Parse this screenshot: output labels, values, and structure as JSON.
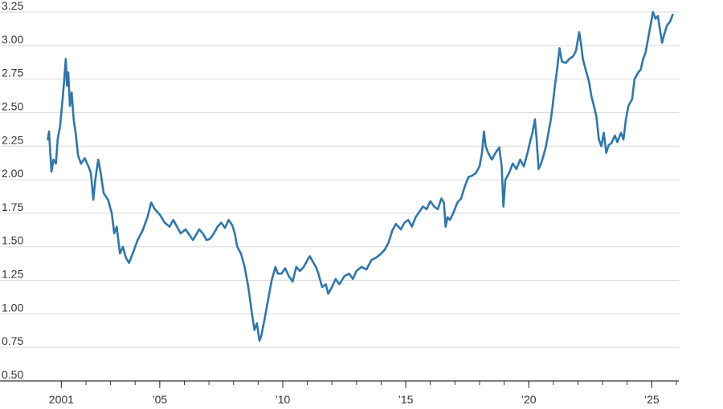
{
  "chart_data": {
    "type": "line",
    "title": "",
    "xlabel": "",
    "ylabel": "",
    "colors": {
      "line": "#2f76ad",
      "grid": "#d9d9d9",
      "axis": "#333333",
      "text": "#333333"
    },
    "grid": true,
    "legend": "none",
    "xlim": [
      2000.4,
      2026.1
    ],
    "ylim": [
      0.5,
      3.25
    ],
    "y_ticks": [
      3.25,
      3.0,
      2.75,
      2.5,
      2.25,
      2.0,
      1.75,
      1.5,
      1.25,
      1.0,
      0.75,
      0.5
    ],
    "y_tick_labels": [
      "3.25",
      "3.00",
      "2.75",
      "2.50",
      "2.25",
      "2.00",
      "1.75",
      "1.50",
      "1.25",
      "1.00",
      "0.75",
      "0.50"
    ],
    "x_tick_labels": [
      {
        "x": 2001,
        "label": "2001"
      },
      {
        "x": 2005,
        "label": "’05"
      },
      {
        "x": 2010,
        "label": "’10"
      },
      {
        "x": 2015,
        "label": "’15"
      },
      {
        "x": 2020,
        "label": "’20"
      },
      {
        "x": 2025,
        "label": "’25"
      }
    ],
    "x_minor_ticks": [
      2000,
      2001,
      2002,
      2003,
      2004,
      2005,
      2006,
      2007,
      2008,
      2009,
      2010,
      2011,
      2012,
      2013,
      2014,
      2015,
      2016,
      2017,
      2018,
      2019,
      2020,
      2021,
      2022,
      2023,
      2024,
      2025,
      2026
    ],
    "series": [
      {
        "values": [
          [
            2000.45,
            2.3
          ],
          [
            2000.5,
            2.36
          ],
          [
            2000.55,
            2.2
          ],
          [
            2000.6,
            2.06
          ],
          [
            2000.68,
            2.15
          ],
          [
            2000.78,
            2.12
          ],
          [
            2000.85,
            2.3
          ],
          [
            2000.95,
            2.4
          ],
          [
            2001.05,
            2.6
          ],
          [
            2001.12,
            2.75
          ],
          [
            2001.18,
            2.9
          ],
          [
            2001.23,
            2.7
          ],
          [
            2001.28,
            2.8
          ],
          [
            2001.35,
            2.55
          ],
          [
            2001.42,
            2.65
          ],
          [
            2001.5,
            2.45
          ],
          [
            2001.58,
            2.35
          ],
          [
            2001.68,
            2.18
          ],
          [
            2001.8,
            2.12
          ],
          [
            2001.95,
            2.16
          ],
          [
            2002.1,
            2.1
          ],
          [
            2002.2,
            2.05
          ],
          [
            2002.3,
            1.85
          ],
          [
            2002.38,
            2.0
          ],
          [
            2002.5,
            2.15
          ],
          [
            2002.6,
            2.05
          ],
          [
            2002.72,
            1.9
          ],
          [
            2002.9,
            1.85
          ],
          [
            2003.05,
            1.75
          ],
          [
            2003.15,
            1.6
          ],
          [
            2003.25,
            1.65
          ],
          [
            2003.38,
            1.45
          ],
          [
            2003.5,
            1.5
          ],
          [
            2003.62,
            1.42
          ],
          [
            2003.75,
            1.38
          ],
          [
            2003.9,
            1.45
          ],
          [
            2004.1,
            1.55
          ],
          [
            2004.3,
            1.62
          ],
          [
            2004.5,
            1.72
          ],
          [
            2004.65,
            1.83
          ],
          [
            2004.8,
            1.78
          ],
          [
            2005.0,
            1.74
          ],
          [
            2005.2,
            1.68
          ],
          [
            2005.4,
            1.65
          ],
          [
            2005.55,
            1.7
          ],
          [
            2005.7,
            1.65
          ],
          [
            2005.85,
            1.6
          ],
          [
            2006.05,
            1.63
          ],
          [
            2006.2,
            1.59
          ],
          [
            2006.35,
            1.55
          ],
          [
            2006.45,
            1.58
          ],
          [
            2006.6,
            1.63
          ],
          [
            2006.75,
            1.6
          ],
          [
            2006.9,
            1.55
          ],
          [
            2007.05,
            1.56
          ],
          [
            2007.2,
            1.6
          ],
          [
            2007.35,
            1.65
          ],
          [
            2007.5,
            1.68
          ],
          [
            2007.65,
            1.64
          ],
          [
            2007.8,
            1.7
          ],
          [
            2007.95,
            1.66
          ],
          [
            2008.05,
            1.6
          ],
          [
            2008.15,
            1.5
          ],
          [
            2008.3,
            1.45
          ],
          [
            2008.45,
            1.35
          ],
          [
            2008.6,
            1.2
          ],
          [
            2008.75,
            1.0
          ],
          [
            2008.85,
            0.88
          ],
          [
            2008.95,
            0.93
          ],
          [
            2009.05,
            0.8
          ],
          [
            2009.12,
            0.83
          ],
          [
            2009.25,
            0.95
          ],
          [
            2009.4,
            1.1
          ],
          [
            2009.55,
            1.25
          ],
          [
            2009.7,
            1.35
          ],
          [
            2009.8,
            1.3
          ],
          [
            2009.95,
            1.3
          ],
          [
            2010.1,
            1.34
          ],
          [
            2010.25,
            1.28
          ],
          [
            2010.4,
            1.24
          ],
          [
            2010.55,
            1.35
          ],
          [
            2010.7,
            1.32
          ],
          [
            2010.85,
            1.35
          ],
          [
            2011.0,
            1.4
          ],
          [
            2011.1,
            1.43
          ],
          [
            2011.25,
            1.38
          ],
          [
            2011.35,
            1.35
          ],
          [
            2011.45,
            1.3
          ],
          [
            2011.6,
            1.2
          ],
          [
            2011.75,
            1.22
          ],
          [
            2011.85,
            1.15
          ],
          [
            2012.0,
            1.2
          ],
          [
            2012.15,
            1.26
          ],
          [
            2012.3,
            1.22
          ],
          [
            2012.5,
            1.28
          ],
          [
            2012.7,
            1.3
          ],
          [
            2012.85,
            1.26
          ],
          [
            2013.0,
            1.32
          ],
          [
            2013.2,
            1.35
          ],
          [
            2013.4,
            1.33
          ],
          [
            2013.6,
            1.4
          ],
          [
            2013.8,
            1.42
          ],
          [
            2014.0,
            1.45
          ],
          [
            2014.15,
            1.48
          ],
          [
            2014.3,
            1.53
          ],
          [
            2014.45,
            1.62
          ],
          [
            2014.6,
            1.67
          ],
          [
            2014.8,
            1.63
          ],
          [
            2014.95,
            1.68
          ],
          [
            2015.1,
            1.7
          ],
          [
            2015.25,
            1.65
          ],
          [
            2015.4,
            1.72
          ],
          [
            2015.55,
            1.76
          ],
          [
            2015.7,
            1.8
          ],
          [
            2015.85,
            1.78
          ],
          [
            2016.0,
            1.84
          ],
          [
            2016.15,
            1.8
          ],
          [
            2016.3,
            1.78
          ],
          [
            2016.45,
            1.86
          ],
          [
            2016.55,
            1.83
          ],
          [
            2016.62,
            1.65
          ],
          [
            2016.7,
            1.72
          ],
          [
            2016.8,
            1.7
          ],
          [
            2016.95,
            1.76
          ],
          [
            2017.1,
            1.83
          ],
          [
            2017.25,
            1.86
          ],
          [
            2017.4,
            1.95
          ],
          [
            2017.55,
            2.02
          ],
          [
            2017.7,
            2.03
          ],
          [
            2017.85,
            2.05
          ],
          [
            2018.0,
            2.1
          ],
          [
            2018.1,
            2.2
          ],
          [
            2018.18,
            2.36
          ],
          [
            2018.25,
            2.25
          ],
          [
            2018.35,
            2.2
          ],
          [
            2018.5,
            2.15
          ],
          [
            2018.65,
            2.2
          ],
          [
            2018.8,
            2.24
          ],
          [
            2018.9,
            2.1
          ],
          [
            2018.97,
            1.8
          ],
          [
            2019.05,
            2.0
          ],
          [
            2019.2,
            2.05
          ],
          [
            2019.35,
            2.12
          ],
          [
            2019.5,
            2.08
          ],
          [
            2019.65,
            2.15
          ],
          [
            2019.8,
            2.1
          ],
          [
            2019.95,
            2.2
          ],
          [
            2020.05,
            2.28
          ],
          [
            2020.15,
            2.35
          ],
          [
            2020.25,
            2.45
          ],
          [
            2020.32,
            2.3
          ],
          [
            2020.4,
            2.08
          ],
          [
            2020.5,
            2.12
          ],
          [
            2020.6,
            2.18
          ],
          [
            2020.7,
            2.25
          ],
          [
            2020.8,
            2.35
          ],
          [
            2020.9,
            2.45
          ],
          [
            2020.97,
            2.55
          ],
          [
            2021.05,
            2.68
          ],
          [
            2021.15,
            2.82
          ],
          [
            2021.25,
            2.98
          ],
          [
            2021.35,
            2.88
          ],
          [
            2021.5,
            2.87
          ],
          [
            2021.65,
            2.9
          ],
          [
            2021.8,
            2.92
          ],
          [
            2021.92,
            2.96
          ],
          [
            2022.05,
            3.1
          ],
          [
            2022.12,
            3.02
          ],
          [
            2022.2,
            2.9
          ],
          [
            2022.3,
            2.83
          ],
          [
            2022.45,
            2.73
          ],
          [
            2022.55,
            2.62
          ],
          [
            2022.65,
            2.55
          ],
          [
            2022.75,
            2.47
          ],
          [
            2022.85,
            2.3
          ],
          [
            2022.95,
            2.25
          ],
          [
            2023.05,
            2.35
          ],
          [
            2023.15,
            2.2
          ],
          [
            2023.25,
            2.26
          ],
          [
            2023.35,
            2.27
          ],
          [
            2023.5,
            2.33
          ],
          [
            2023.6,
            2.28
          ],
          [
            2023.75,
            2.35
          ],
          [
            2023.85,
            2.3
          ],
          [
            2023.95,
            2.45
          ],
          [
            2024.05,
            2.55
          ],
          [
            2024.2,
            2.6
          ],
          [
            2024.3,
            2.75
          ],
          [
            2024.45,
            2.8
          ],
          [
            2024.55,
            2.82
          ],
          [
            2024.65,
            2.9
          ],
          [
            2024.75,
            2.95
          ],
          [
            2024.85,
            3.05
          ],
          [
            2024.95,
            3.15
          ],
          [
            2025.05,
            3.25
          ],
          [
            2025.15,
            3.2
          ],
          [
            2025.25,
            3.22
          ],
          [
            2025.35,
            3.1
          ],
          [
            2025.42,
            3.02
          ],
          [
            2025.5,
            3.08
          ],
          [
            2025.62,
            3.15
          ],
          [
            2025.75,
            3.18
          ],
          [
            2025.85,
            3.23
          ]
        ]
      }
    ]
  }
}
